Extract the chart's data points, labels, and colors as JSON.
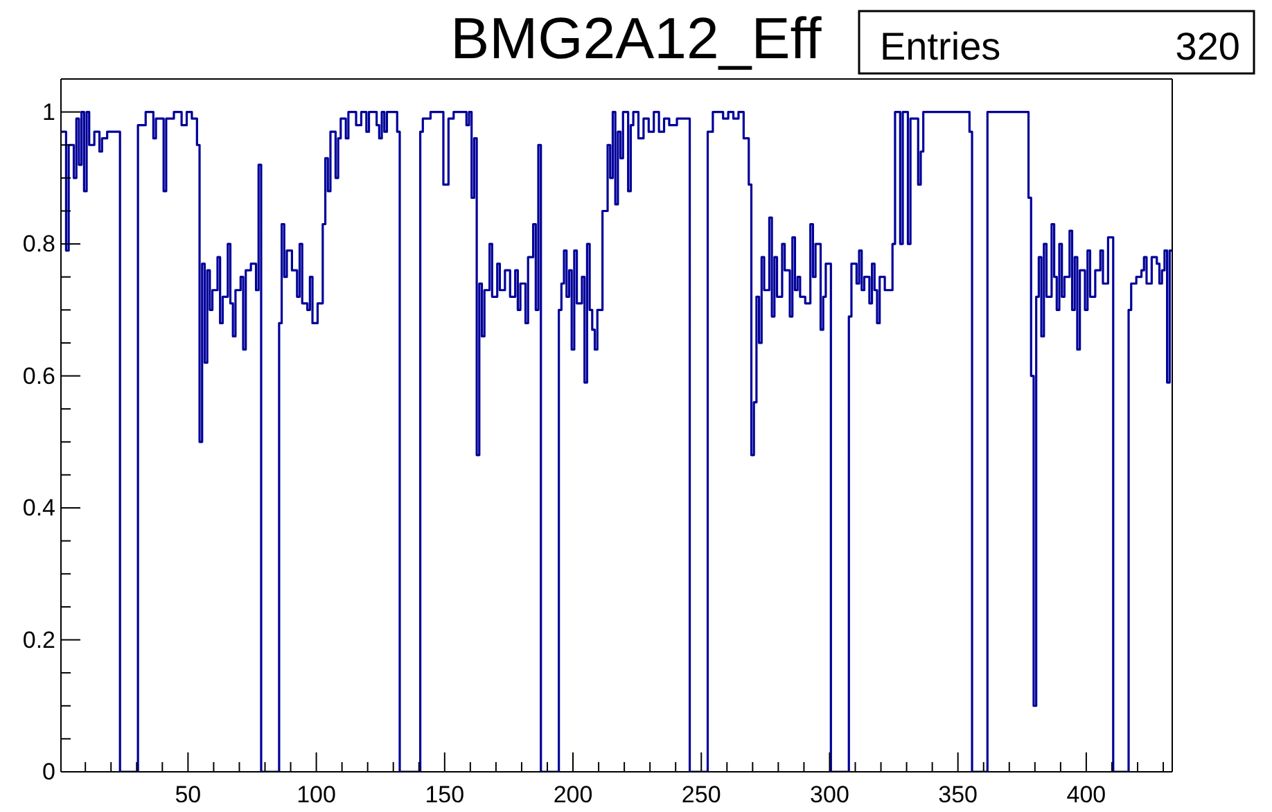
{
  "chart_data": {
    "type": "step",
    "title": "BMG2A12_Eff",
    "annotations": [
      "Entries",
      "320"
    ],
    "x": [
      0.5,
      2.5,
      3.5,
      5.5,
      6.5,
      7.5,
      8.5,
      9.5,
      10.5,
      11.5,
      13.5,
      15.5,
      16.5,
      18.5,
      23.5,
      30.5,
      33.5,
      36.5,
      37.5,
      40.5,
      41.5,
      44.5,
      47.5,
      49.5,
      51.5,
      53.5,
      54.5,
      55.5,
      56.5,
      57.5,
      58.5,
      59.5,
      61.5,
      62.5,
      63.5,
      65.5,
      66.5,
      67.5,
      68.5,
      70.5,
      71.5,
      72.5,
      74.5,
      76.5,
      77.5,
      78.5,
      85.5,
      86.5,
      87.5,
      88.5,
      90.5,
      92.5,
      93.5,
      94.5,
      96.5,
      97.5,
      98.5,
      100.5,
      102.5,
      103.5,
      104.5,
      105.5,
      107.5,
      108.5,
      109.5,
      111.5,
      112.5,
      115.5,
      117.5,
      119.5,
      120.5,
      123.5,
      124.5,
      125.5,
      126.5,
      127.5,
      131.5,
      132.5,
      140.5,
      141.5,
      144.5,
      149.5,
      151.5,
      153.5,
      158.5,
      159.5,
      160.5,
      161.5,
      162.5,
      163.5,
      164.5,
      165.5,
      167.5,
      168.5,
      170.5,
      171.5,
      173.5,
      175.5,
      177.5,
      178.5,
      179.5,
      181.5,
      182.5,
      184.5,
      185.5,
      186.5,
      187.5,
      194.5,
      195.5,
      196.5,
      197.5,
      198.5,
      199.5,
      200.5,
      201.5,
      203.5,
      204.5,
      205.5,
      206.5,
      207.5,
      208.5,
      209.5,
      211.5,
      213.5,
      214.5,
      215.5,
      216.5,
      217.5,
      218.5,
      219.5,
      221.5,
      222.5,
      223.5,
      225.5,
      227.5,
      229.5,
      231.5,
      233.5,
      235.5,
      237.5,
      240.5,
      245.5,
      252.5,
      254.5,
      258.5,
      260.5,
      262.5,
      264.5,
      266.5,
      268.5,
      269.5,
      270.5,
      271.5,
      272.5,
      273.5,
      274.5,
      276.5,
      277.5,
      278.5,
      279.5,
      281.5,
      282.5,
      284.5,
      285.5,
      286.5,
      287.5,
      288.5,
      290.5,
      292.5,
      293.5,
      294.5,
      296.5,
      297.5,
      298.5,
      300.5,
      307.5,
      308.5,
      310.5,
      311.5,
      312.5,
      313.5,
      315.5,
      316.5,
      317.5,
      318.5,
      319.5,
      321.5,
      324.5,
      325.5,
      327.5,
      328.5,
      330.5,
      331.5,
      334.5,
      335.5,
      336.5,
      354.5,
      355.5,
      361.5,
      377.5,
      378.5,
      379.5,
      380.5,
      381.5,
      382.5,
      383.5,
      384.5,
      386.5,
      387.5,
      388.5,
      389.5,
      390.5,
      391.5,
      393.5,
      394.5,
      395.5,
      396.5,
      397.5,
      399.5,
      400.5,
      401.5,
      403.5,
      405.5,
      406.5,
      408.5,
      410.5,
      416.5,
      417.5,
      419.5,
      421.5,
      422.5,
      423.5,
      425.5,
      427.5,
      428.5,
      429.5,
      430.5,
      431.5,
      432.5,
      433.5
    ],
    "series": [
      {
        "color": "#000099",
        "values": [
          0.97,
          0.79,
          0.95,
          0.9,
          0.99,
          0.92,
          1.0,
          0.88,
          1.0,
          0.95,
          0.97,
          0.94,
          0.96,
          0.97,
          0,
          0.98,
          1.0,
          0.96,
          0.99,
          0.88,
          0.99,
          1.0,
          0.98,
          1.0,
          0.99,
          0.95,
          0.5,
          0.77,
          0.62,
          0.76,
          0.7,
          0.73,
          0.78,
          0.68,
          0.72,
          0.8,
          0.71,
          0.66,
          0.73,
          0.75,
          0.64,
          0.76,
          0.77,
          0.73,
          0.92,
          0,
          0.68,
          0.83,
          0.75,
          0.79,
          0.76,
          0.72,
          0.8,
          0.71,
          0.7,
          0.75,
          0.68,
          0.71,
          0.83,
          0.93,
          0.88,
          0.97,
          0.9,
          0.96,
          0.99,
          0.96,
          1.0,
          0.98,
          1.0,
          0.97,
          1.0,
          0.98,
          0.96,
          1.0,
          0.97,
          1.0,
          0.97,
          0,
          0.97,
          0.99,
          1.0,
          0.89,
          0.99,
          1.0,
          0.98,
          1.0,
          0.87,
          0.96,
          0.48,
          0.74,
          0.66,
          0.73,
          0.8,
          0.72,
          0.77,
          0.73,
          0.76,
          0.72,
          0.76,
          0.7,
          0.74,
          0.68,
          0.78,
          0.83,
          0.7,
          0.95,
          0,
          0.7,
          0.74,
          0.79,
          0.72,
          0.76,
          0.64,
          0.79,
          0.71,
          0.75,
          0.59,
          0.8,
          0.7,
          0.67,
          0.64,
          0.7,
          0.85,
          0.95,
          0.9,
          1.0,
          0.86,
          0.97,
          0.93,
          1.0,
          0.88,
          0.98,
          1.0,
          0.96,
          0.99,
          0.97,
          1.0,
          0.97,
          0.99,
          0.98,
          0.99,
          0,
          0.97,
          1.0,
          0.99,
          1.0,
          0.99,
          1.0,
          0.96,
          0.89,
          0.48,
          0.56,
          0.72,
          0.65,
          0.78,
          0.73,
          0.84,
          0.69,
          0.78,
          0.72,
          0.8,
          0.76,
          0.69,
          0.81,
          0.73,
          0.75,
          0.72,
          0.71,
          0.83,
          0.75,
          0.8,
          0.67,
          0.72,
          0.77,
          0,
          0.69,
          0.77,
          0.74,
          0.79,
          0.73,
          0.75,
          0.71,
          0.77,
          0.73,
          0.68,
          0.75,
          0.73,
          0.8,
          1.0,
          0.8,
          1.0,
          0.8,
          0.99,
          0.89,
          0.94,
          1.0,
          0.97,
          0,
          1.0,
          0.87,
          0.6,
          0.1,
          0.72,
          0.78,
          0.66,
          0.8,
          0.72,
          0.83,
          0.75,
          0.7,
          0.8,
          0.72,
          0.75,
          0.82,
          0.7,
          0.78,
          0.64,
          0.76,
          0.7,
          0.79,
          0.72,
          0.76,
          0.79,
          0.74,
          0.81,
          0,
          0.7,
          0.74,
          0.75,
          0.76,
          0.78,
          0.74,
          0.78,
          0.77,
          0.74,
          0.76,
          0.79,
          0.59,
          0.79,
          0.79
        ]
      }
    ],
    "xlim": [
      0.5,
      433.5
    ],
    "xticks": [
      {
        "value": 10,
        "label": null
      },
      {
        "value": 20,
        "label": null
      },
      {
        "value": 30,
        "label": null
      },
      {
        "value": 40,
        "label": null
      },
      50,
      {
        "value": 60,
        "label": null
      },
      {
        "value": 70,
        "label": null
      },
      {
        "value": 80,
        "label": null
      },
      {
        "value": 90,
        "label": null
      },
      100,
      {
        "value": 110,
        "label": null
      },
      {
        "value": 120,
        "label": null
      },
      {
        "value": 130,
        "label": null
      },
      {
        "value": 140,
        "label": null
      },
      150,
      {
        "value": 160,
        "label": null
      },
      {
        "value": 170,
        "label": null
      },
      {
        "value": 180,
        "label": null
      },
      {
        "value": 190,
        "label": null
      },
      200,
      {
        "value": 210,
        "label": null
      },
      {
        "value": 220,
        "label": null
      },
      {
        "value": 230,
        "label": null
      },
      {
        "value": 240,
        "label": null
      },
      250,
      {
        "value": 260,
        "label": null
      },
      {
        "value": 270,
        "label": null
      },
      {
        "value": 280,
        "label": null
      },
      {
        "value": 290,
        "label": null
      },
      300,
      {
        "value": 310,
        "label": null
      },
      {
        "value": 320,
        "label": null
      },
      {
        "value": 330,
        "label": null
      },
      {
        "value": 340,
        "label": null
      },
      350,
      {
        "value": 360,
        "label": null
      },
      {
        "value": 370,
        "label": null
      },
      {
        "value": 380,
        "label": null
      },
      {
        "value": 390,
        "label": null
      },
      400,
      {
        "value": 410,
        "label": null
      },
      {
        "value": 420,
        "label": null
      },
      {
        "value": 430,
        "label": null
      }
    ],
    "ylim": [
      0,
      1.05
    ],
    "yticks": [
      0,
      {
        "value": 0.05,
        "label": null
      },
      {
        "value": 0.1,
        "label": null
      },
      {
        "value": 0.15,
        "label": null
      },
      0.2,
      {
        "value": 0.25,
        "label": null
      },
      {
        "value": 0.3,
        "label": null
      },
      {
        "value": 0.35,
        "label": null
      },
      0.4,
      {
        "value": 0.45,
        "label": null
      },
      {
        "value": 0.5,
        "label": null
      },
      {
        "value": 0.55,
        "label": null
      },
      0.6,
      {
        "value": 0.65,
        "label": null
      },
      {
        "value": 0.7,
        "label": null
      },
      {
        "value": 0.75,
        "label": null
      },
      0.8,
      {
        "value": 0.85,
        "label": null
      },
      {
        "value": 0.9,
        "label": null
      },
      {
        "value": 0.95,
        "label": null
      },
      1,
      {
        "value": 1.05,
        "label": null
      }
    ],
    "grid": false,
    "legend": false,
    "marker": "none",
    "line_style": "solid"
  }
}
